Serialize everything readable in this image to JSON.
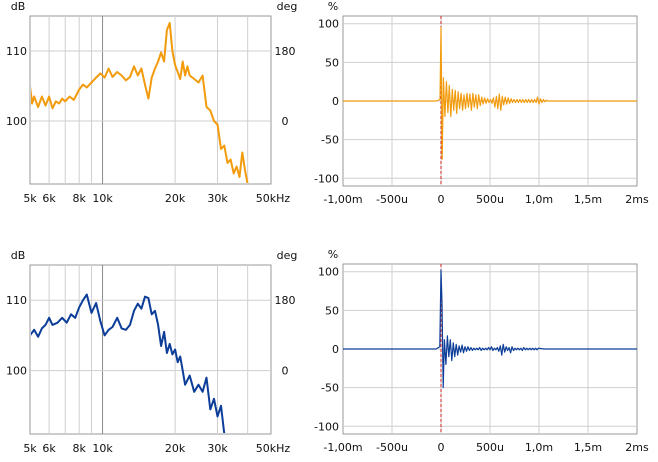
{
  "colors": {
    "orange": "#f29b0d",
    "blue": "#0b3d99",
    "grid": "#cfcfcf",
    "tenk": "#8a8a8a",
    "zero_marker": "#d21f1f",
    "frame": "#9a9a9a"
  },
  "freq_plot": {
    "left_unit": "dB",
    "right_unit": "deg",
    "db_ticks": [
      {
        "v": 110,
        "label": "110"
      },
      {
        "v": 100,
        "label": "100"
      }
    ],
    "deg_ticks": [
      {
        "v": 180,
        "label": "180"
      },
      {
        "v": 0,
        "label": "0"
      }
    ],
    "x_ticks": [
      {
        "v": 5,
        "label": "5k"
      },
      {
        "v": 6,
        "label": "6k"
      },
      {
        "v": 8,
        "label": "8k"
      },
      {
        "v": 10,
        "label": "10k"
      },
      {
        "v": 20,
        "label": "20k"
      },
      {
        "v": 30,
        "label": "30k"
      },
      {
        "v": 50,
        "label": "50kHz"
      }
    ]
  },
  "time_plot": {
    "left_unit": "%",
    "y_ticks": [
      {
        "v": 100,
        "label": "100"
      },
      {
        "v": 50,
        "label": "50"
      },
      {
        "v": 0,
        "label": "0"
      },
      {
        "v": -50,
        "label": "-50"
      },
      {
        "v": -100,
        "label": "-100"
      }
    ],
    "x_ticks": [
      {
        "v": -1.0,
        "label": "-1,00m"
      },
      {
        "v": -0.5,
        "label": "-500u"
      },
      {
        "v": 0,
        "label": "0"
      },
      {
        "v": 0.5,
        "label": "500u"
      },
      {
        "v": 1.0,
        "label": "1,0m"
      },
      {
        "v": 1.5,
        "label": "1,5m"
      },
      {
        "v": 2.0,
        "label": "2ms"
      }
    ]
  },
  "chart_data": [
    {
      "type": "line",
      "xlabel": "kHz",
      "ylabel": "dB",
      "x_scale": "log",
      "xlim": [
        5,
        50
      ],
      "ylim": [
        91,
        115
      ],
      "grid": true,
      "legend": "none",
      "series": [
        {
          "color": "#f29b0d",
          "x": [
            5.0,
            5.1,
            5.2,
            5.4,
            5.6,
            5.8,
            6.0,
            6.2,
            6.4,
            6.6,
            6.8,
            7.0,
            7.3,
            7.6,
            8.0,
            8.3,
            8.6,
            9.0,
            9.4,
            9.8,
            10.2,
            10.6,
            11.0,
            11.5,
            12.0,
            12.5,
            13.0,
            13.5,
            14.0,
            14.5,
            15.0,
            15.5,
            16.0,
            16.5,
            17.0,
            17.5,
            18.0,
            18.5,
            19.0,
            19.5,
            20.0,
            20.5,
            21.0,
            21.5,
            22.0,
            22.5,
            23.0,
            24.0,
            25.0,
            26.0,
            27.0,
            28.0,
            29.0,
            30.0,
            31.0,
            32.0,
            33.0,
            34.0,
            35.0,
            36.0,
            37.0,
            38.0,
            39.0,
            40.0
          ],
          "y": [
            105.0,
            102.5,
            103.5,
            102.0,
            103.5,
            102.2,
            103.5,
            101.8,
            102.8,
            102.5,
            103.2,
            102.8,
            103.5,
            103.0,
            104.5,
            105.2,
            104.8,
            105.5,
            106.2,
            106.8,
            106.2,
            107.5,
            106.3,
            107.0,
            106.5,
            105.8,
            106.3,
            107.8,
            106.5,
            107.5,
            105.2,
            103.2,
            106.2,
            107.5,
            108.5,
            109.8,
            108.5,
            113.0,
            114.0,
            110.0,
            108.0,
            107.0,
            106.0,
            108.5,
            106.5,
            107.8,
            106.5,
            106.0,
            105.5,
            106.5,
            102.0,
            101.5,
            100.0,
            99.5,
            96.0,
            96.5,
            94.0,
            94.5,
            92.5,
            93.5,
            92.0,
            95.5,
            93.0,
            91.0
          ]
        }
      ]
    },
    {
      "type": "line",
      "xlabel": "ms",
      "ylabel": "%",
      "xlim": [
        -1.0,
        2.0
      ],
      "ylim": [
        -110,
        110
      ],
      "grid": true,
      "legend": "none",
      "series": [
        {
          "color": "#f29b0d",
          "x": [
            -1.0,
            -0.05,
            -0.01,
            0.0,
            0.012,
            0.025,
            0.04,
            0.055,
            0.07,
            0.085,
            0.1,
            0.115,
            0.13,
            0.145,
            0.16,
            0.175,
            0.19,
            0.205,
            0.22,
            0.235,
            0.25,
            0.265,
            0.28,
            0.295,
            0.31,
            0.325,
            0.34,
            0.355,
            0.37,
            0.385,
            0.4,
            0.415,
            0.43,
            0.445,
            0.46,
            0.475,
            0.49,
            0.505,
            0.52,
            0.535,
            0.55,
            0.565,
            0.58,
            0.595,
            0.61,
            0.625,
            0.64,
            0.655,
            0.67,
            0.685,
            0.7,
            0.715,
            0.73,
            0.745,
            0.76,
            0.775,
            0.79,
            0.805,
            0.82,
            0.835,
            0.85,
            0.865,
            0.88,
            0.895,
            0.91,
            0.925,
            0.94,
            0.955,
            0.97,
            0.985,
            1.0,
            1.015,
            1.03,
            1.045,
            1.06,
            1.075,
            1.09,
            1.2,
            1.4,
            1.6,
            1.8,
            2.0
          ],
          "y": [
            0,
            0,
            2,
            95,
            -75,
            30,
            -20,
            25,
            -15,
            20,
            -20,
            15,
            -12,
            14,
            -16,
            12,
            -10,
            10,
            -12,
            8,
            -10,
            10,
            -8,
            9,
            -12,
            10,
            -8,
            8,
            -10,
            8,
            -6,
            5,
            -4,
            4,
            -3,
            3,
            -2,
            2,
            -3,
            4,
            -8,
            6,
            -10,
            9,
            -12,
            6,
            -5,
            5,
            -4,
            4,
            -3,
            3,
            -2,
            2,
            -2,
            2,
            -2,
            2,
            -2,
            2,
            -2,
            2,
            -2,
            2,
            -2,
            2,
            -2,
            2,
            -2,
            5,
            -4,
            3,
            -2,
            2,
            -1,
            1,
            0,
            0,
            0,
            0,
            0,
            0
          ]
        }
      ]
    },
    {
      "type": "line",
      "xlabel": "kHz",
      "ylabel": "dB",
      "x_scale": "log",
      "xlim": [
        5,
        50
      ],
      "ylim": [
        91,
        115
      ],
      "grid": true,
      "legend": "none",
      "series": [
        {
          "color": "#0b3d99",
          "x": [
            5.0,
            5.2,
            5.4,
            5.6,
            5.8,
            6.0,
            6.2,
            6.5,
            6.8,
            7.1,
            7.4,
            7.7,
            8.0,
            8.3,
            8.6,
            9.0,
            9.4,
            9.8,
            10.2,
            10.6,
            11.0,
            11.5,
            12.0,
            12.5,
            13.0,
            13.5,
            14.0,
            14.5,
            15.0,
            15.5,
            16.0,
            16.5,
            17.0,
            17.5,
            18.0,
            18.5,
            19.0,
            19.5,
            20.0,
            20.5,
            21.0,
            21.5,
            22.0,
            23.0,
            24.0,
            25.0,
            26.0,
            27.0,
            28.0,
            29.0,
            30.0,
            31.0,
            32.0
          ],
          "y": [
            105.0,
            105.8,
            104.8,
            106.0,
            106.5,
            107.5,
            106.5,
            106.8,
            107.5,
            106.8,
            108.0,
            107.5,
            109.0,
            110.0,
            110.8,
            108.2,
            109.6,
            107.0,
            105.0,
            105.8,
            106.2,
            107.5,
            106.0,
            105.8,
            106.5,
            108.5,
            109.5,
            108.8,
            110.5,
            110.3,
            108.0,
            108.5,
            106.5,
            103.5,
            105.5,
            102.5,
            103.8,
            102.3,
            103.0,
            101.2,
            102.0,
            100.0,
            98.0,
            99.3,
            97.0,
            98.0,
            97.0,
            99.0,
            94.5,
            96.0,
            93.5,
            95.0,
            91.0
          ]
        }
      ]
    },
    {
      "type": "line",
      "xlabel": "ms",
      "ylabel": "%",
      "xlim": [
        -1.0,
        2.0
      ],
      "ylim": [
        -110,
        110
      ],
      "grid": true,
      "legend": "none",
      "series": [
        {
          "color": "#0b3d99",
          "x": [
            -1.0,
            -0.05,
            -0.012,
            0.0,
            0.01,
            0.022,
            0.035,
            0.05,
            0.065,
            0.08,
            0.095,
            0.11,
            0.125,
            0.14,
            0.155,
            0.17,
            0.185,
            0.2,
            0.215,
            0.23,
            0.245,
            0.26,
            0.275,
            0.29,
            0.305,
            0.32,
            0.335,
            0.35,
            0.365,
            0.38,
            0.395,
            0.41,
            0.425,
            0.44,
            0.455,
            0.47,
            0.485,
            0.5,
            0.515,
            0.53,
            0.545,
            0.56,
            0.575,
            0.59,
            0.605,
            0.62,
            0.635,
            0.65,
            0.665,
            0.68,
            0.695,
            0.71,
            0.725,
            0.74,
            0.755,
            0.77,
            0.785,
            0.8,
            0.815,
            0.83,
            0.845,
            0.86,
            0.875,
            0.89,
            0.905,
            0.92,
            0.935,
            0.95,
            0.965,
            0.98,
            0.995,
            1.05,
            1.2,
            1.4,
            1.6,
            1.8,
            2.0
          ],
          "y": [
            0,
            0,
            3,
            102,
            60,
            -50,
            12,
            -20,
            17,
            -10,
            12,
            -15,
            8,
            -10,
            6,
            -8,
            4,
            -4,
            5,
            -5,
            3,
            -3,
            3,
            -2,
            2,
            -2,
            1,
            -1,
            1,
            -1,
            2,
            -2,
            1,
            -1,
            1,
            -1,
            2,
            -1,
            3,
            -2,
            1,
            -1,
            2,
            -3,
            4,
            -8,
            6,
            -4,
            3,
            -2,
            2,
            -5,
            3,
            -2,
            1,
            -1,
            1,
            -1,
            1,
            -2,
            2,
            -1,
            1,
            -1,
            1,
            -1,
            1,
            -1,
            1,
            -1,
            1,
            0,
            0,
            0,
            0,
            0,
            0
          ]
        }
      ]
    }
  ]
}
